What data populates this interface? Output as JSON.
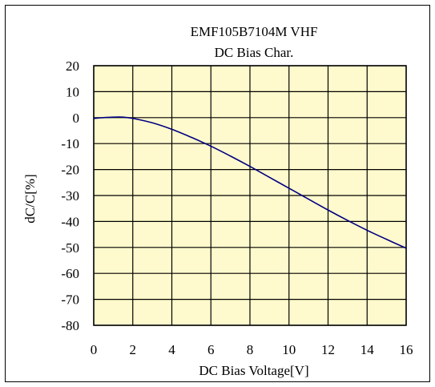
{
  "chart_data": {
    "type": "line",
    "title": "EMF105B7104M VHF",
    "subtitle": "DC Bias Char.",
    "xlabel": "DC Bias Voltage[V]",
    "ylabel": "dC/C[%]",
    "xlim": [
      0,
      16
    ],
    "ylim": [
      -80,
      20
    ],
    "xticks": [
      0,
      2,
      4,
      6,
      8,
      10,
      12,
      14,
      16
    ],
    "yticks": [
      20,
      10,
      0,
      -10,
      -20,
      -30,
      -40,
      -50,
      -60,
      -70,
      -80
    ],
    "grid": true,
    "plot_background": "#fffacd",
    "series_color": "#000080",
    "series": [
      {
        "x": [
          0,
          0.5,
          1,
          1.5,
          2,
          3,
          4,
          5,
          6,
          7,
          8,
          9,
          10,
          11,
          12,
          13,
          14,
          15,
          16
        ],
        "values": [
          -0.3,
          0.0,
          0.2,
          0.2,
          -0.3,
          -2.0,
          -4.5,
          -7.6,
          -11.0,
          -14.8,
          -18.8,
          -23.0,
          -27.2,
          -31.4,
          -35.6,
          -39.6,
          -43.4,
          -46.9,
          -50.3
        ]
      }
    ]
  }
}
